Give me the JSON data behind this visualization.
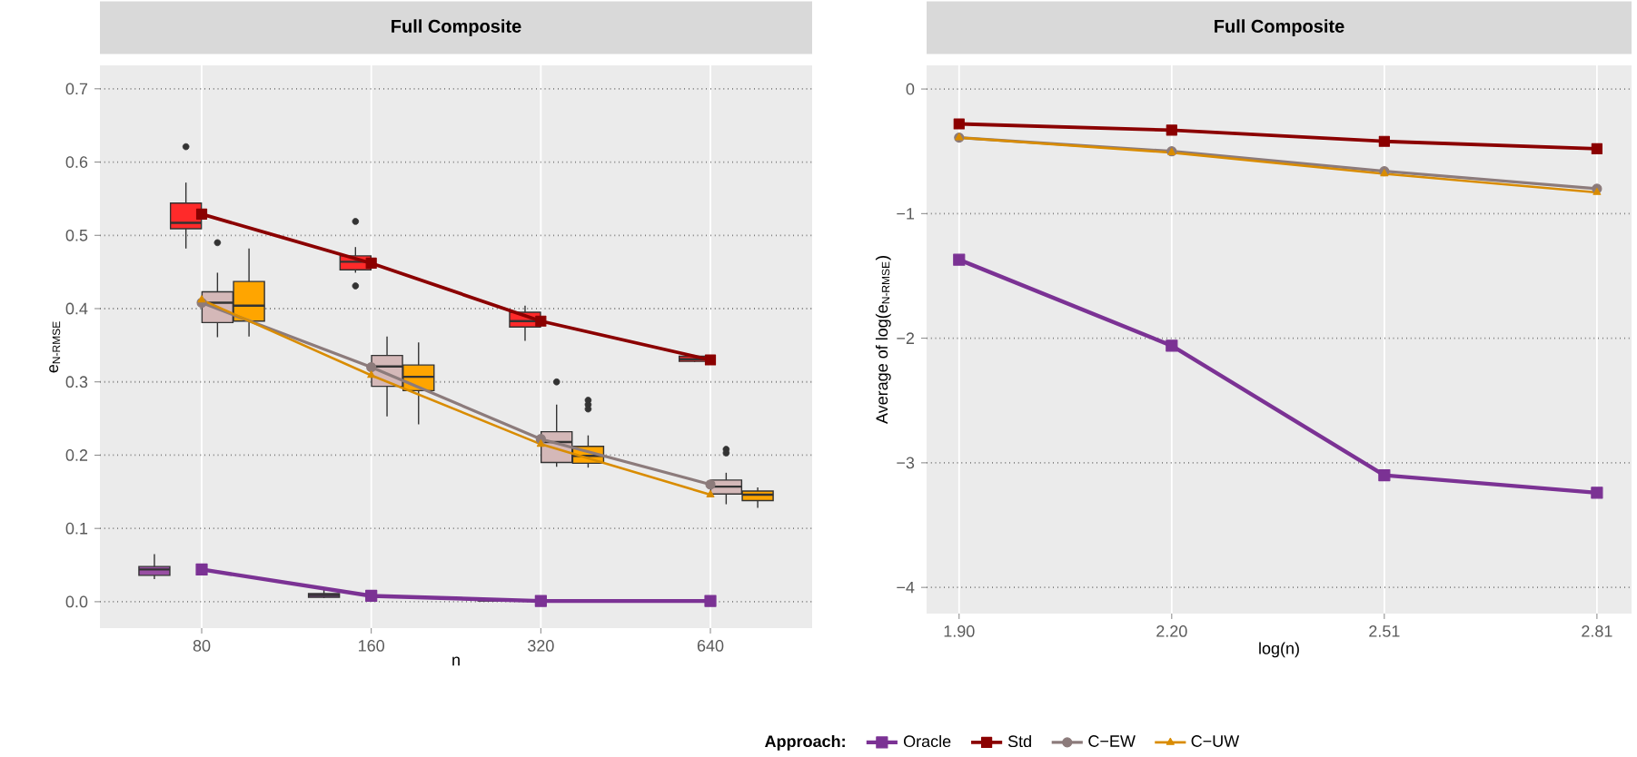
{
  "chart_data": [
    {
      "type": "box",
      "title": "Full Composite",
      "xlabel": "n",
      "ylabel": "e$_{N-RMSE}$",
      "categories": [
        "80",
        "160",
        "320",
        "640"
      ],
      "ylim": [
        -0.036,
        0.732
      ],
      "yticks": [
        {
          "value": 0,
          "label": "0.0"
        },
        {
          "value": 0.1,
          "label": "0.1"
        },
        {
          "value": 0.2,
          "label": "0.2"
        },
        {
          "value": 0.3,
          "label": "0.3"
        },
        {
          "value": 0.4,
          "label": "0.4"
        },
        {
          "value": 0.5,
          "label": "0.5"
        },
        {
          "value": 0.6,
          "label": "0.6"
        },
        {
          "value": 0.7,
          "label": "0.7"
        }
      ],
      "grid": true,
      "series": [
        {
          "color": "#984ea3",
          "boxes": [
            {
              "low": 0.031,
              "q1": 0.036,
              "median": 0.044,
              "q3": 0.048,
              "high": 0.065
            },
            {
              "low": 0.005,
              "q1": 0.006,
              "median": 0.009,
              "q3": 0.011,
              "high": 0.018
            },
            {
              "low": 0,
              "q1": 0.001,
              "median": 0.002,
              "q3": 0.003,
              "high": 0.004
            },
            {
              "low": 0,
              "q1": 0,
              "median": 0.001,
              "q3": 0.002,
              "high": 0.003
            }
          ]
        },
        {
          "color": "#ff2a2a",
          "boxes": [
            {
              "low": 0.482,
              "q1": 0.509,
              "median": 0.517,
              "q3": 0.544,
              "high": 0.572,
              "outliers": [
                0.621
              ]
            },
            {
              "low": 0.449,
              "q1": 0.453,
              "median": 0.464,
              "q3": 0.472,
              "high": 0.484,
              "outliers": [
                0.519,
                0.431
              ]
            },
            {
              "low": 0.356,
              "q1": 0.375,
              "median": 0.383,
              "q3": 0.395,
              "high": 0.404
            },
            {
              "low": 0.327,
              "q1": 0.328,
              "median": 0.331,
              "q3": 0.335,
              "high": 0.336
            }
          ]
        },
        {
          "color": "#d4b8b8",
          "boxes": [
            {
              "low": 0.361,
              "q1": 0.381,
              "median": 0.408,
              "q3": 0.423,
              "high": 0.449,
              "outliers": [
                0.49
              ]
            },
            {
              "low": 0.253,
              "q1": 0.294,
              "median": 0.321,
              "q3": 0.336,
              "high": 0.362
            },
            {
              "low": 0.184,
              "q1": 0.19,
              "median": 0.218,
              "q3": 0.232,
              "high": 0.269,
              "outliers": [
                0.3
              ]
            },
            {
              "low": 0.133,
              "q1": 0.147,
              "median": 0.157,
              "q3": 0.166,
              "high": 0.176,
              "outliers": [
                0.208,
                0.203
              ]
            }
          ]
        },
        {
          "color": "#ffa500",
          "boxes": [
            {
              "low": 0.362,
              "q1": 0.383,
              "median": 0.404,
              "q3": 0.437,
              "high": 0.482
            },
            {
              "low": 0.242,
              "q1": 0.288,
              "median": 0.307,
              "q3": 0.323,
              "high": 0.354
            },
            {
              "low": 0.183,
              "q1": 0.189,
              "median": 0.199,
              "q3": 0.212,
              "high": 0.227,
              "outliers": [
                0.275,
                0.269,
                0.263
              ]
            },
            {
              "low": 0.128,
              "q1": 0.138,
              "median": 0.146,
              "q3": 0.151,
              "high": 0.156
            }
          ]
        },
        {
          "type": "line",
          "color": "#7b3294",
          "marker": "square",
          "values": [
            0.044,
            0.008,
            0.001,
            0.001
          ]
        },
        {
          "type": "line",
          "color": "#8b0000",
          "marker": "square",
          "values": [
            0.529,
            0.462,
            0.383,
            0.33
          ]
        },
        {
          "type": "line",
          "color": "#8c7b7b",
          "marker": "circle",
          "values": [
            0.408,
            0.32,
            0.222,
            0.16
          ]
        },
        {
          "type": "line",
          "color": "#d98c00",
          "marker": "triangle",
          "values": [
            0.412,
            0.309,
            0.215,
            0.146
          ]
        }
      ]
    },
    {
      "type": "line",
      "title": "Full Composite",
      "xlabel": "log(n)",
      "ylabel": "Average of log(e$_{N-RMSE}$)",
      "x": [
        1.903,
        2.204,
        2.505,
        2.806
      ],
      "xlim": [
        1.857,
        2.855
      ],
      "xticks": [
        {
          "value": 1.903,
          "label": "1.90"
        },
        {
          "value": 2.204,
          "label": "2.20"
        },
        {
          "value": 2.505,
          "label": "2.51"
        },
        {
          "value": 2.806,
          "label": "2.81"
        }
      ],
      "ylim": [
        -4.21,
        0.19
      ],
      "yticks": [
        {
          "value": -4,
          "label": "−4"
        },
        {
          "value": -3,
          "label": "−3"
        },
        {
          "value": -2,
          "label": "−2"
        },
        {
          "value": -1,
          "label": "−1"
        },
        0
      ],
      "grid": true,
      "legend": "bottom",
      "legend_title": "Approach:",
      "series": [
        {
          "name": "Oracle",
          "color": "#7b3294",
          "marker": "square",
          "values": [
            -1.37,
            -2.06,
            -3.1,
            -3.24
          ]
        },
        {
          "name": "Std",
          "color": "#8b0000",
          "marker": "square",
          "values": [
            -0.28,
            -0.33,
            -0.42,
            -0.48
          ]
        },
        {
          "name": "C−EW",
          "color": "#8c7b7b",
          "marker": "circle",
          "values": [
            -0.39,
            -0.5,
            -0.66,
            -0.8
          ]
        },
        {
          "name": "C−UW",
          "color": "#d98c00",
          "marker": "triangle",
          "values": [
            -0.39,
            -0.51,
            -0.68,
            -0.83
          ]
        }
      ]
    }
  ]
}
